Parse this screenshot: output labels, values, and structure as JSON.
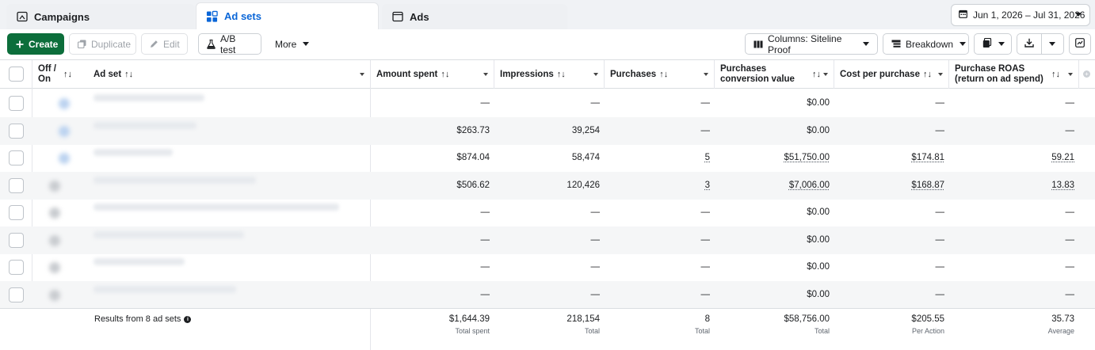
{
  "tabs": [
    {
      "label": "Campaigns",
      "icon": "folder-icon"
    },
    {
      "label": "Ad sets",
      "icon": "grid-icon"
    },
    {
      "label": "Ads",
      "icon": "window-icon"
    }
  ],
  "date_range": "Jun 1, 2026 – Jul 31, 2026",
  "toolbar": {
    "create": "Create",
    "duplicate": "Duplicate",
    "edit": "Edit",
    "ab_test": "A/B test",
    "more": "More",
    "columns": "Columns: Siteline Proof",
    "breakdown": "Breakdown"
  },
  "columns": {
    "off_on": "Off / On",
    "ad_set": "Ad set",
    "amount_spent": "Amount spent",
    "impressions": "Impressions",
    "purchases": "Purchases",
    "purchases_conv_value": "Purchases conversion value",
    "cost_per_purchase": "Cost per purchase",
    "purchase_roas": "Purchase ROAS (return on ad spend)"
  },
  "rows": [
    {
      "amount": "—",
      "impressions": "—",
      "purchases": "—",
      "conv_value": "$0.00",
      "cpp": "—",
      "roas": "—"
    },
    {
      "amount": "$263.73",
      "impressions": "39,254",
      "purchases": "—",
      "conv_value": "$0.00",
      "cpp": "—",
      "roas": "—"
    },
    {
      "amount": "$874.04",
      "impressions": "58,474",
      "purchases": "5",
      "conv_value": "$51,750.00",
      "cpp": "$174.81",
      "roas": "59.21"
    },
    {
      "amount": "$506.62",
      "impressions": "120,426",
      "purchases": "3",
      "conv_value": "$7,006.00",
      "cpp": "$168.87",
      "roas": "13.83"
    },
    {
      "amount": "—",
      "impressions": "—",
      "purchases": "—",
      "conv_value": "$0.00",
      "cpp": "—",
      "roas": "—"
    },
    {
      "amount": "—",
      "impressions": "—",
      "purchases": "—",
      "conv_value": "$0.00",
      "cpp": "—",
      "roas": "—"
    },
    {
      "amount": "—",
      "impressions": "—",
      "purchases": "—",
      "conv_value": "$0.00",
      "cpp": "—",
      "roas": "—"
    },
    {
      "amount": "—",
      "impressions": "—",
      "purchases": "—",
      "conv_value": "$0.00",
      "cpp": "—",
      "roas": "—"
    }
  ],
  "totals": {
    "label": "Results from 8 ad sets",
    "amount": "$1,644.39",
    "amount_sub": "Total spent",
    "impressions": "218,154",
    "impressions_sub": "Total",
    "purchases": "8",
    "purchases_sub": "Total",
    "conv_value": "$58,756.00",
    "conv_value_sub": "Total",
    "cpp": "$205.55",
    "cpp_sub": "Per Action",
    "roas": "35.73",
    "roas_sub": "Average"
  },
  "colors": {
    "accent": "#0a66d8",
    "create": "#0c6e3b"
  }
}
